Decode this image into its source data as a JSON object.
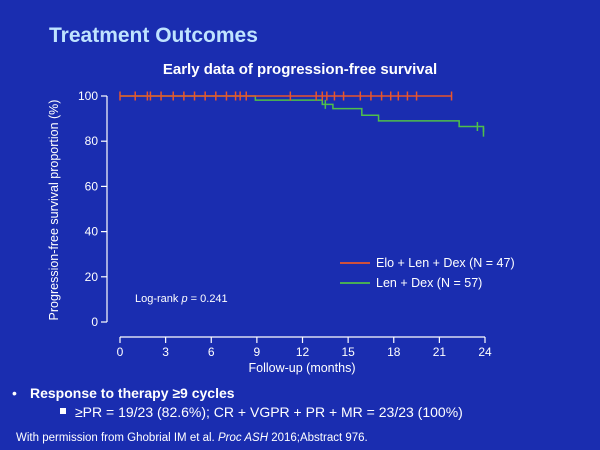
{
  "slide": {
    "title": "Treatment Outcomes"
  },
  "bullets": {
    "main": "Response to therapy ≥9 cycles",
    "sub": "≥PR = 19/23 (82.6%); CR + VGPR + PR + MR = 23/23 (100%)"
  },
  "citation": {
    "prefix": "With permission from Ghobrial IM et al. ",
    "journal": "Proc ASH",
    "suffix": " 2016;Abstract 976."
  },
  "colors": {
    "background": "#1a2db0",
    "title": "#bfe3ff",
    "axis": "#ffffff",
    "elo_series": "#e8552c",
    "len_series": "#4fbf4a"
  },
  "chart_data": {
    "type": "line",
    "title": "Early data of progression-free survival",
    "xlabel": "Follow-up (months)",
    "ylabel": "Progression-free survival proportion (%)",
    "xlim": [
      0,
      24
    ],
    "ylim": [
      0,
      100
    ],
    "xticks": [
      0,
      3,
      6,
      9,
      12,
      15,
      18,
      21,
      24
    ],
    "yticks": [
      0,
      20,
      40,
      60,
      80,
      100
    ],
    "grid": false,
    "legend_position": "bottom-right",
    "annotation": {
      "prefix": "Log-rank ",
      "variable": "p",
      "suffix": " = 0.241"
    },
    "series": [
      {
        "name": "Elo + Len + Dex (N = 47)",
        "color": "#e8552c",
        "steps": [
          [
            0,
            100
          ],
          [
            21.8,
            100
          ]
        ],
        "censored": [
          0.0,
          1.0,
          1.8,
          2.0,
          2.7,
          3.5,
          4.2,
          4.9,
          5.6,
          6.3,
          7.0,
          7.6,
          7.9,
          8.3,
          11.2,
          12.9,
          13.3,
          13.6,
          14.1,
          14.7,
          15.8,
          16.5,
          17.2,
          17.8,
          18.3,
          18.9,
          19.5,
          21.8
        ]
      },
      {
        "name": "Len + Dex (N = 57)",
        "color": "#4fbf4a",
        "steps": [
          [
            0,
            100
          ],
          [
            8.9,
            98.2
          ],
          [
            13.3,
            96.3
          ],
          [
            14.0,
            94.4
          ],
          [
            15.9,
            91.5
          ],
          [
            17.0,
            89.0
          ],
          [
            22.3,
            86.5
          ],
          [
            23.9,
            84.0
          ]
        ],
        "censored": [
          13.5,
          23.5,
          23.9
        ]
      }
    ]
  }
}
